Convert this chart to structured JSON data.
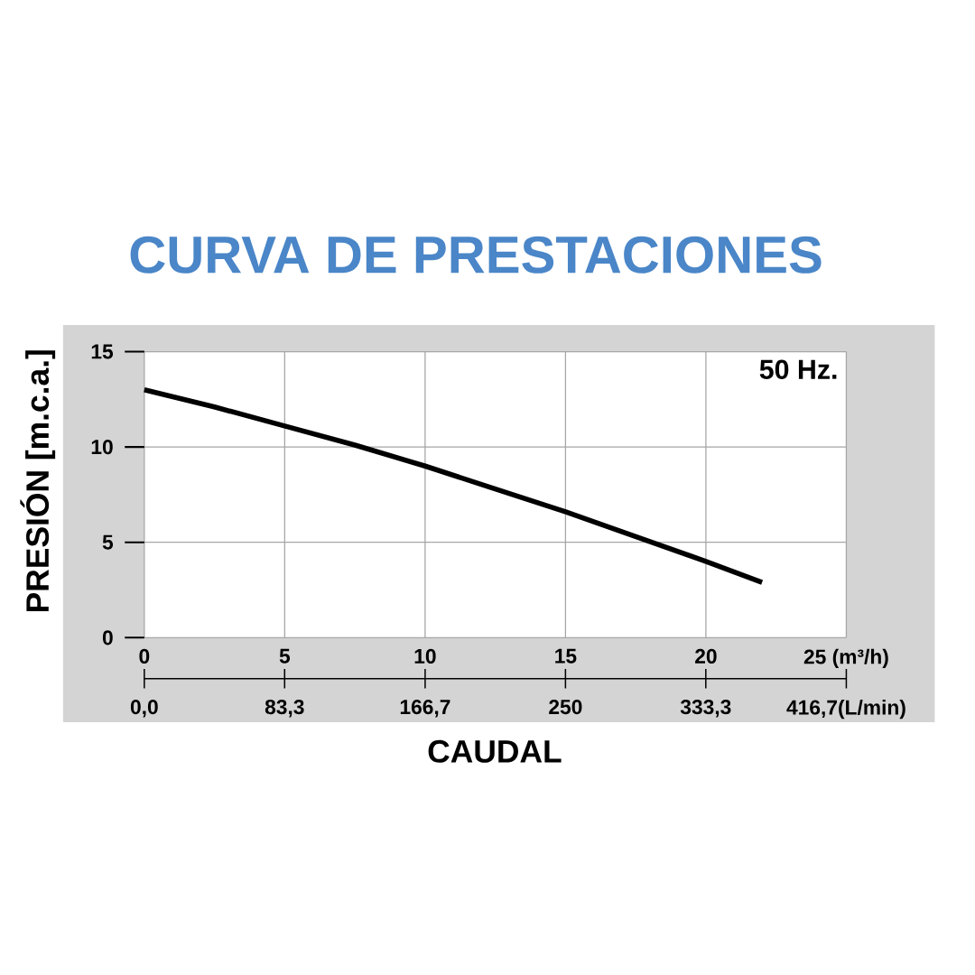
{
  "chart_data": {
    "type": "line",
    "title": "CURVA DE PRESTACIONES",
    "xlabel": "CAUDAL",
    "ylabel": "PRESIÓN [m.c.a.]",
    "annotations": [
      "50 Hz."
    ],
    "x": [
      0,
      2.5,
      5,
      7.5,
      10,
      12.5,
      15,
      17.5,
      20,
      22
    ],
    "series": [
      {
        "color": "#000000",
        "values": [
          13.0,
          12.1,
          11.1,
          10.1,
          9.0,
          7.8,
          6.6,
          5.3,
          4.0,
          2.9
        ]
      }
    ],
    "xlim": [
      0,
      25
    ],
    "xticks": [
      0,
      5,
      10,
      15,
      20,
      {
        "value": 25,
        "label": "25 (m³/h)"
      }
    ],
    "x2lim": [
      0,
      416.7
    ],
    "x2ticks": [
      {
        "value": 0,
        "label": "0,0"
      },
      {
        "value": 83.3,
        "label": "83,3"
      },
      {
        "value": 166.7,
        "label": "166,7"
      },
      {
        "value": 250,
        "label": "250"
      },
      {
        "value": 333.3,
        "label": "333,3"
      },
      {
        "value": 416.7,
        "label": "416,7(L/min)"
      }
    ],
    "ylim": [
      0,
      15
    ],
    "yticks": [
      0,
      5,
      10,
      15
    ],
    "grid": true
  }
}
